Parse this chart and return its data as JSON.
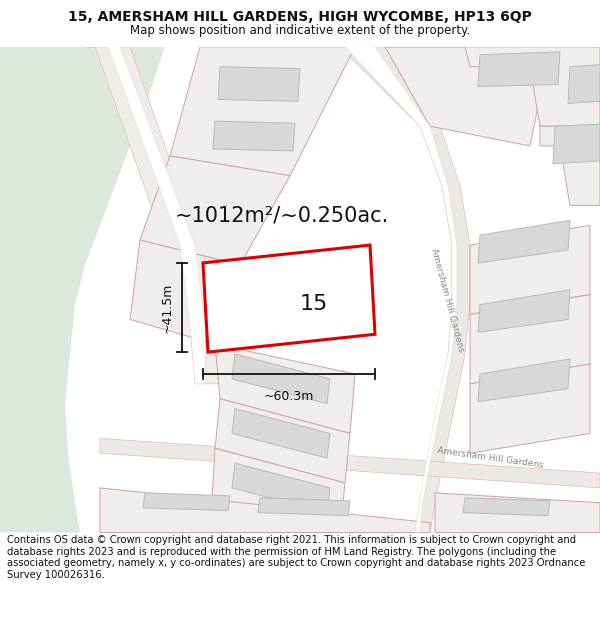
{
  "title_line1": "15, AMERSHAM HILL GARDENS, HIGH WYCOMBE, HP13 6QP",
  "title_line2": "Map shows position and indicative extent of the property.",
  "footer_text": "Contains OS data © Crown copyright and database right 2021. This information is subject to Crown copyright and database rights 2023 and is reproduced with the permission of HM Land Registry. The polygons (including the associated geometry, namely x, y co-ordinates) are subject to Crown copyright and database rights 2023 Ordnance Survey 100026316.",
  "map_bg": "#f5f5f0",
  "green_color": "#dce8dc",
  "road_outline_color": "#e8b8b8",
  "road_fill_color": "#e8e0d8",
  "building_fill": "#d8d8d8",
  "building_edge": "#b8b8b8",
  "plot_edge_color": "#d0a0a0",
  "plot_fill_color": "#f0eeec",
  "highlight_color": "#dd0000",
  "highlight_fill": "#ffffff",
  "dim_color": "#111111",
  "text_color": "#111111",
  "road_label_color": "#888888",
  "area_text": "~1012m²/~0.250ac.",
  "dim_width": "~60.3m",
  "dim_height": "~41.5m",
  "plot_label": "15",
  "title_fontsize": 10,
  "subtitle_fontsize": 8.5,
  "area_fontsize": 15,
  "dim_fontsize": 9,
  "plot_label_fontsize": 16,
  "footer_fontsize": 7.2,
  "road_label_fontsize": 6.5
}
